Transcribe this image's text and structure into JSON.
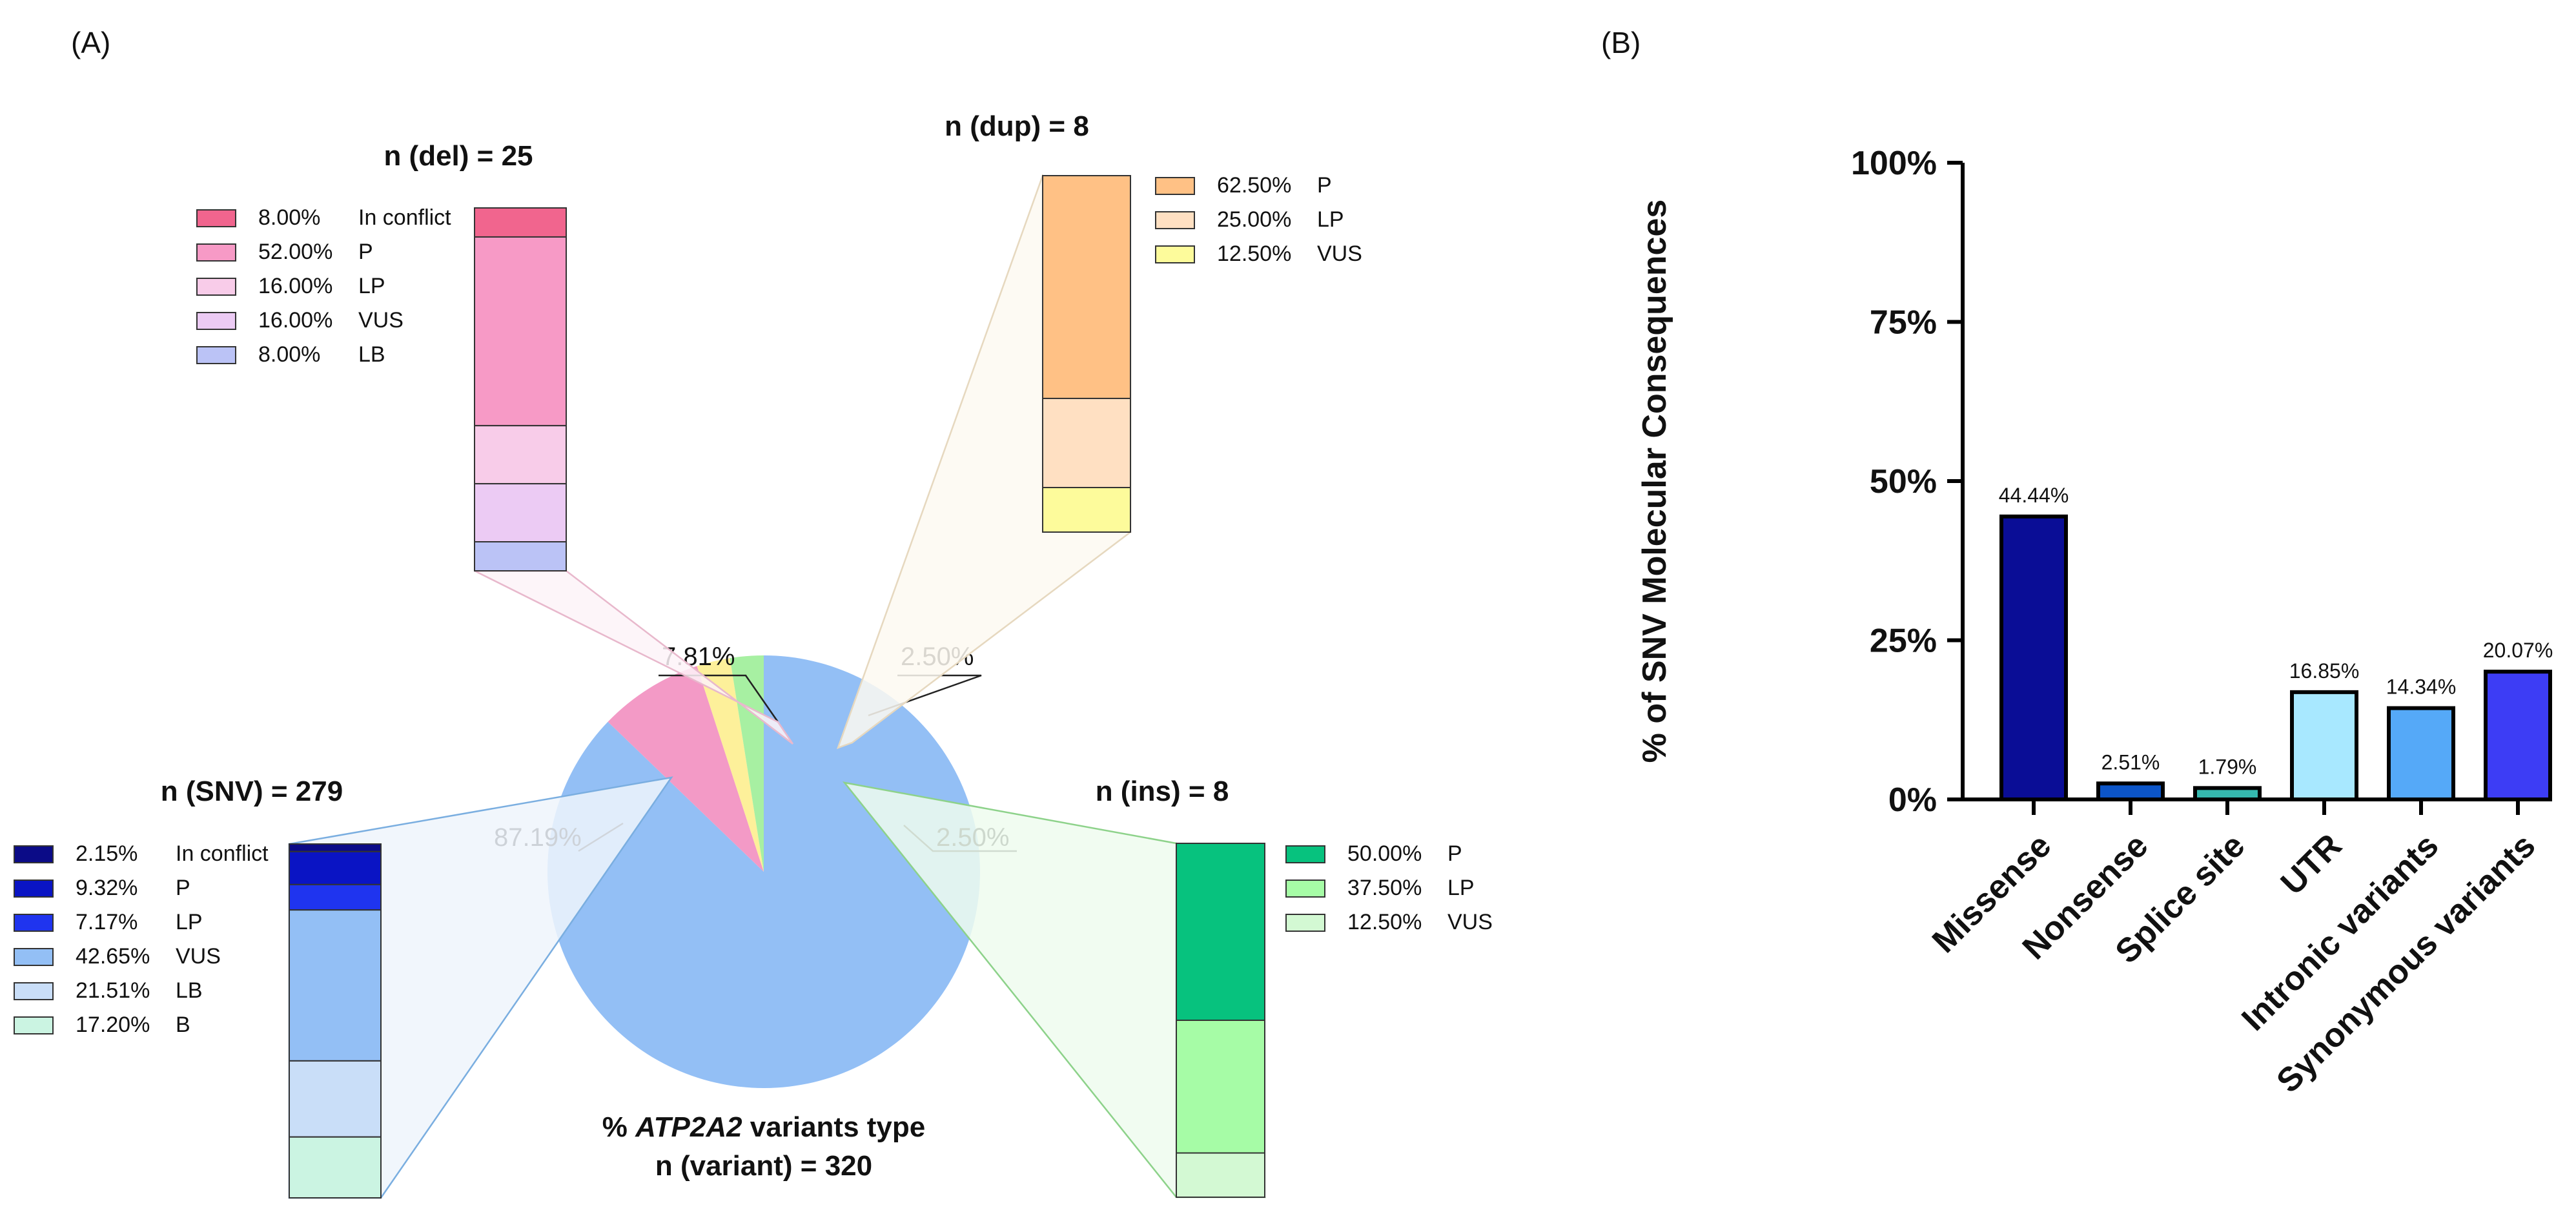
{
  "panels": {
    "a_label": "(A)",
    "b_label": "(B)"
  },
  "colors": {
    "missense": "#0a0d96",
    "nonsense": "#0c55c8",
    "splice": "#35b8ae",
    "utr": "#a8e8ff",
    "intronic": "#55a9f8",
    "synonymous": "#3d3df5"
  },
  "chart_data": [
    {
      "id": "pie",
      "type": "pie",
      "title_pre": "% ",
      "title_gene": "ATP2A2",
      "title_post": " variants type",
      "subtitle": "n (variant) = 320",
      "slices": [
        {
          "key": "snv",
          "label": "87.19%",
          "value": 87.19,
          "color": "#93bff5"
        },
        {
          "key": "del",
          "label": "7.81%",
          "value": 7.81,
          "color": "#f39ac6"
        },
        {
          "key": "dup",
          "label": "2.50%",
          "value": 2.5,
          "color": "#fdf09a"
        },
        {
          "key": "ins",
          "label": "2.50%",
          "value": 2.5,
          "color": "#a7f0a2"
        }
      ]
    },
    {
      "id": "del",
      "type": "bar",
      "stacked": true,
      "title": "n (del) = 25",
      "segments": [
        {
          "pct": "8.00%",
          "label": "In conflict",
          "value": 8.0,
          "color": "#f1658e"
        },
        {
          "pct": "52.00%",
          "label": "P",
          "value": 52.0,
          "color": "#f79ac6"
        },
        {
          "pct": "16.00%",
          "label": "LP",
          "value": 16.0,
          "color": "#f8cce9"
        },
        {
          "pct": "16.00%",
          "label": "VUS",
          "value": 16.0,
          "color": "#eccbf4"
        },
        {
          "pct": "8.00%",
          "label": "LB",
          "value": 8.0,
          "color": "#bbc3f6"
        }
      ]
    },
    {
      "id": "dup",
      "type": "bar",
      "stacked": true,
      "title": "n (dup) = 8",
      "segments": [
        {
          "pct": "62.50%",
          "label": "P",
          "value": 62.5,
          "color": "#ffc185"
        },
        {
          "pct": "25.00%",
          "label": "LP",
          "value": 25.0,
          "color": "#ffe0c2"
        },
        {
          "pct": "12.50%",
          "label": "VUS",
          "value": 12.5,
          "color": "#fdfb9b"
        }
      ]
    },
    {
      "id": "snv",
      "type": "bar",
      "stacked": true,
      "title": "n (SNV) = 279",
      "segments": [
        {
          "pct": "2.15%",
          "label": "In conflict",
          "value": 2.15,
          "color": "#0b0b87"
        },
        {
          "pct": "9.32%",
          "label": "P",
          "value": 9.32,
          "color": "#0a14c4"
        },
        {
          "pct": "7.17%",
          "label": "LP",
          "value": 7.17,
          "color": "#1f34ef"
        },
        {
          "pct": "42.65%",
          "label": "VUS",
          "value": 42.65,
          "color": "#93bff5"
        },
        {
          "pct": "21.51%",
          "label": "LB",
          "value": 21.51,
          "color": "#c9def8"
        },
        {
          "pct": "17.20%",
          "label": "B",
          "value": 17.2,
          "color": "#cbf4e2"
        }
      ]
    },
    {
      "id": "ins",
      "type": "bar",
      "stacked": true,
      "title": "n (ins) = 8",
      "segments": [
        {
          "pct": "50.00%",
          "label": "P",
          "value": 50.0,
          "color": "#07c27e"
        },
        {
          "pct": "37.50%",
          "label": "LP",
          "value": 37.5,
          "color": "#a6fca6"
        },
        {
          "pct": "12.50%",
          "label": "VUS",
          "value": 12.5,
          "color": "#d3f9d3"
        }
      ]
    },
    {
      "id": "bars",
      "type": "bar",
      "ylabel": "% of  SNV Molecular Consequences",
      "ylim": [
        0,
        100
      ],
      "yticks": [
        "0%",
        "25%",
        "50%",
        "75%",
        "100%"
      ],
      "categories": [
        "Missense",
        "Nonsense",
        "Splice site",
        "UTR",
        "Intronic variants",
        "Synonymous variants"
      ],
      "values": [
        44.44,
        2.51,
        1.79,
        16.85,
        14.34,
        20.07
      ],
      "labels": [
        "44.44%",
        "2.51%",
        "1.79%",
        "16.85%",
        "14.34%",
        "20.07%"
      ],
      "colors": [
        "#0a0d96",
        "#0c55c8",
        "#35b8ae",
        "#a8e8ff",
        "#55a9f8",
        "#3d3df5"
      ]
    }
  ]
}
